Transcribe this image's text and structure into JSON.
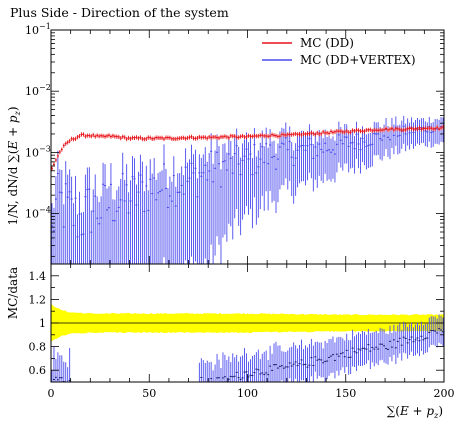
{
  "chart_data": [
    {
      "type": "line",
      "title": "Plus Side - Direction of the system",
      "ylabel": "1/N, dN/d ∑(E + p_z)",
      "ylabel_prefix": "1/N, dN/d ∑(",
      "ylabel_E": "E",
      "ylabel_plus": " + ",
      "ylabel_p": "p",
      "ylabel_sub": "z",
      "ylabel_close": ")",
      "yscale": "log",
      "ylim": [
        1.5e-05,
        0.1
      ],
      "xlim": [
        0,
        200
      ],
      "yticks": [
        {
          "value": 0.0001,
          "base": "10",
          "exp": "−4"
        },
        {
          "value": 0.001,
          "base": "10",
          "exp": "−3"
        },
        {
          "value": 0.01,
          "base": "10",
          "exp": "−2"
        },
        {
          "value": 0.1,
          "base": "10",
          "exp": "−1"
        }
      ],
      "legend_position": "top-right",
      "series": [
        {
          "name": "MC (DD)",
          "color": "#e8141a",
          "x": [
            0,
            2,
            4,
            6,
            8,
            10,
            12,
            15,
            20,
            25,
            30,
            40,
            50,
            60,
            70,
            80,
            90,
            100,
            110,
            120,
            130,
            140,
            150,
            160,
            170,
            180,
            190,
            200
          ],
          "y": [
            0.0005,
            0.0007,
            0.00095,
            0.0012,
            0.0014,
            0.0016,
            0.0017,
            0.0019,
            0.0019,
            0.0018,
            0.00185,
            0.0017,
            0.0017,
            0.0017,
            0.00175,
            0.00175,
            0.0018,
            0.0018,
            0.0019,
            0.0019,
            0.002,
            0.0021,
            0.0022,
            0.0023,
            0.0024,
            0.0024,
            0.0025,
            0.0025
          ]
        },
        {
          "name": "MC (DD+VERTEX)",
          "color": "#4a4aee",
          "x": [
            0,
            2,
            5,
            10,
            15,
            20,
            25,
            30,
            40,
            50,
            60,
            70,
            80,
            90,
            100,
            110,
            120,
            130,
            140,
            150,
            160,
            170,
            180,
            190,
            200
          ],
          "y": [
            3e-05,
            0.00012,
            0.00015,
            0.0001,
            8e-05,
            0.00012,
            0.00011,
            0.00015,
            0.00018,
            0.00025,
            0.0003,
            0.00035,
            0.0005,
            0.0006,
            0.0007,
            0.0009,
            0.001,
            0.0011,
            0.0012,
            0.0014,
            0.0016,
            0.0019,
            0.0022,
            0.0024,
            0.0025
          ]
        }
      ]
    },
    {
      "type": "line",
      "ylabel": "MC/data",
      "xlabel": "∑(E + p_z)",
      "xlabel_prefix": "∑(",
      "xlabel_E": "E",
      "xlabel_plus": " + ",
      "xlabel_p": "p",
      "xlabel_sub": "z",
      "xlabel_close": ")",
      "xlim": [
        0,
        200
      ],
      "ylim": [
        0.5,
        1.5
      ],
      "xticks": [
        "0",
        "50",
        "100",
        "150",
        "200"
      ],
      "yticks": [
        "0.6",
        "0.8",
        "1",
        "1.2",
        "1.4"
      ],
      "band": {
        "color": "#ffff00",
        "x": [
          0,
          2,
          5,
          10,
          20,
          40,
          60,
          100,
          150,
          200
        ],
        "lower": [
          0.84,
          0.86,
          0.89,
          0.91,
          0.92,
          0.92,
          0.92,
          0.92,
          0.93,
          0.93
        ],
        "upper": [
          1.16,
          1.14,
          1.11,
          1.09,
          1.08,
          1.08,
          1.08,
          1.08,
          1.07,
          1.07
        ]
      },
      "series": [
        {
          "color": "#4a4aee",
          "x": [
            0,
            2,
            5,
            85,
            95,
            100,
            110,
            120,
            130,
            140,
            150,
            160,
            170,
            180,
            190,
            200
          ],
          "y": [
            0.5,
            0.55,
            0.5,
            0.5,
            0.55,
            0.58,
            0.6,
            0.62,
            0.66,
            0.7,
            0.74,
            0.78,
            0.8,
            0.85,
            0.9,
            0.95
          ]
        }
      ]
    }
  ]
}
